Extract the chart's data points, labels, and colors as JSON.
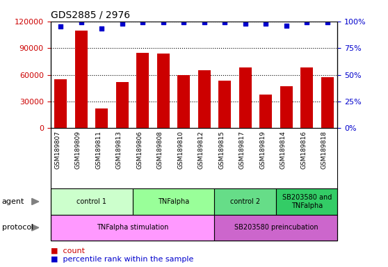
{
  "title": "GDS2885 / 2976",
  "samples": [
    "GSM189807",
    "GSM189809",
    "GSM189811",
    "GSM189813",
    "GSM189806",
    "GSM189808",
    "GSM189810",
    "GSM189812",
    "GSM189815",
    "GSM189817",
    "GSM189819",
    "GSM189814",
    "GSM189816",
    "GSM189818"
  ],
  "counts": [
    55000,
    110000,
    22000,
    52000,
    85000,
    84000,
    60000,
    65000,
    53000,
    68000,
    38000,
    47000,
    68000,
    57000
  ],
  "percentile_ranks": [
    95,
    99,
    93,
    98,
    99,
    99,
    99,
    99,
    99,
    98,
    98,
    96,
    99,
    99
  ],
  "bar_color": "#cc0000",
  "dot_color": "#0000cc",
  "ylim_left": [
    0,
    120000
  ],
  "ylim_right": [
    0,
    100
  ],
  "yticks_left": [
    0,
    30000,
    60000,
    90000,
    120000
  ],
  "yticks_right": [
    0,
    25,
    50,
    75,
    100
  ],
  "agent_groups": [
    {
      "label": "control 1",
      "start": 0,
      "end": 4,
      "color": "#ccffcc"
    },
    {
      "label": "TNFalpha",
      "start": 4,
      "end": 8,
      "color": "#99ff99"
    },
    {
      "label": "control 2",
      "start": 8,
      "end": 11,
      "color": "#66dd88"
    },
    {
      "label": "SB203580 and\nTNFalpha",
      "start": 11,
      "end": 14,
      "color": "#33cc66"
    }
  ],
  "protocol_groups": [
    {
      "label": "TNFalpha stimulation",
      "start": 0,
      "end": 8,
      "color": "#ff99ff"
    },
    {
      "label": "SB203580 preincubation",
      "start": 8,
      "end": 14,
      "color": "#cc66cc"
    }
  ],
  "legend_count_color": "#cc0000",
  "legend_dot_color": "#0000cc",
  "background_color": "#ffffff"
}
